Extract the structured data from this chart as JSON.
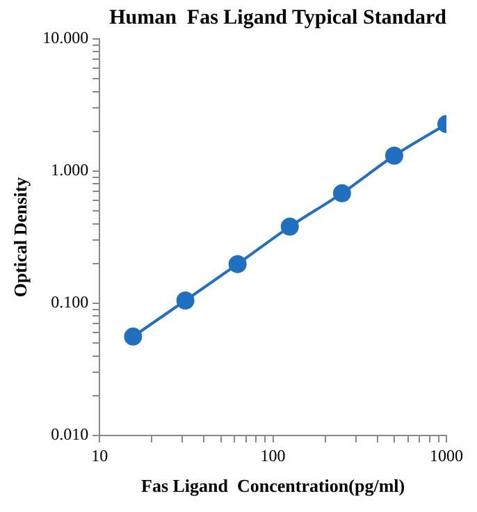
{
  "chart_data": {
    "type": "line",
    "title": "Human  Fas Ligand Typical Standard",
    "xlabel": "Fas Ligand  Concentration(pg/ml)",
    "ylabel": "Optical Density",
    "x": [
      15.6,
      31.25,
      62.5,
      125,
      250,
      500,
      1000
    ],
    "series": [
      {
        "color": "#1f70c1",
        "values": [
          0.056,
          0.105,
          0.198,
          0.38,
          0.68,
          1.31,
          2.27
        ]
      }
    ],
    "log": "xy",
    "xlim": [
      10,
      1000
    ],
    "ylim": [
      0.01,
      10
    ],
    "xticks": [
      10,
      {
        "value": 20,
        "label": null
      },
      {
        "value": 30,
        "label": null
      },
      {
        "value": 40,
        "label": null
      },
      {
        "value": 50,
        "label": null
      },
      {
        "value": 60,
        "label": null
      },
      {
        "value": 70,
        "label": null
      },
      {
        "value": 80,
        "label": null
      },
      {
        "value": 90,
        "label": null
      },
      100,
      {
        "value": 200,
        "label": null
      },
      {
        "value": 300,
        "label": null
      },
      {
        "value": 400,
        "label": null
      },
      {
        "value": 500,
        "label": null
      },
      {
        "value": 600,
        "label": null
      },
      {
        "value": 700,
        "label": null
      },
      {
        "value": 800,
        "label": null
      },
      {
        "value": 900,
        "label": null
      },
      1000
    ],
    "yticks": [
      {
        "value": 0.01,
        "label": "0.010"
      },
      {
        "value": 0.02,
        "label": null
      },
      {
        "value": 0.03,
        "label": null
      },
      {
        "value": 0.04,
        "label": null
      },
      {
        "value": 0.05,
        "label": null
      },
      {
        "value": 0.06,
        "label": null
      },
      {
        "value": 0.07,
        "label": null
      },
      {
        "value": 0.08,
        "label": null
      },
      {
        "value": 0.09,
        "label": null
      },
      {
        "value": 0.1,
        "label": "0.100"
      },
      {
        "value": 0.2,
        "label": null
      },
      {
        "value": 0.3,
        "label": null
      },
      {
        "value": 0.4,
        "label": null
      },
      {
        "value": 0.5,
        "label": null
      },
      {
        "value": 0.6,
        "label": null
      },
      {
        "value": 0.7,
        "label": null
      },
      {
        "value": 0.8,
        "label": null
      },
      {
        "value": 0.9,
        "label": null
      },
      {
        "value": 1,
        "label": "1.000"
      },
      {
        "value": 2,
        "label": null
      },
      {
        "value": 3,
        "label": null
      },
      {
        "value": 4,
        "label": null
      },
      {
        "value": 5,
        "label": null
      },
      {
        "value": 6,
        "label": null
      },
      {
        "value": 7,
        "label": null
      },
      {
        "value": 8,
        "label": null
      },
      {
        "value": 9,
        "label": null
      },
      {
        "value": 10,
        "label": "10.000"
      }
    ],
    "grid": false,
    "legend": false,
    "marker": "circle",
    "line_style": "solid"
  }
}
